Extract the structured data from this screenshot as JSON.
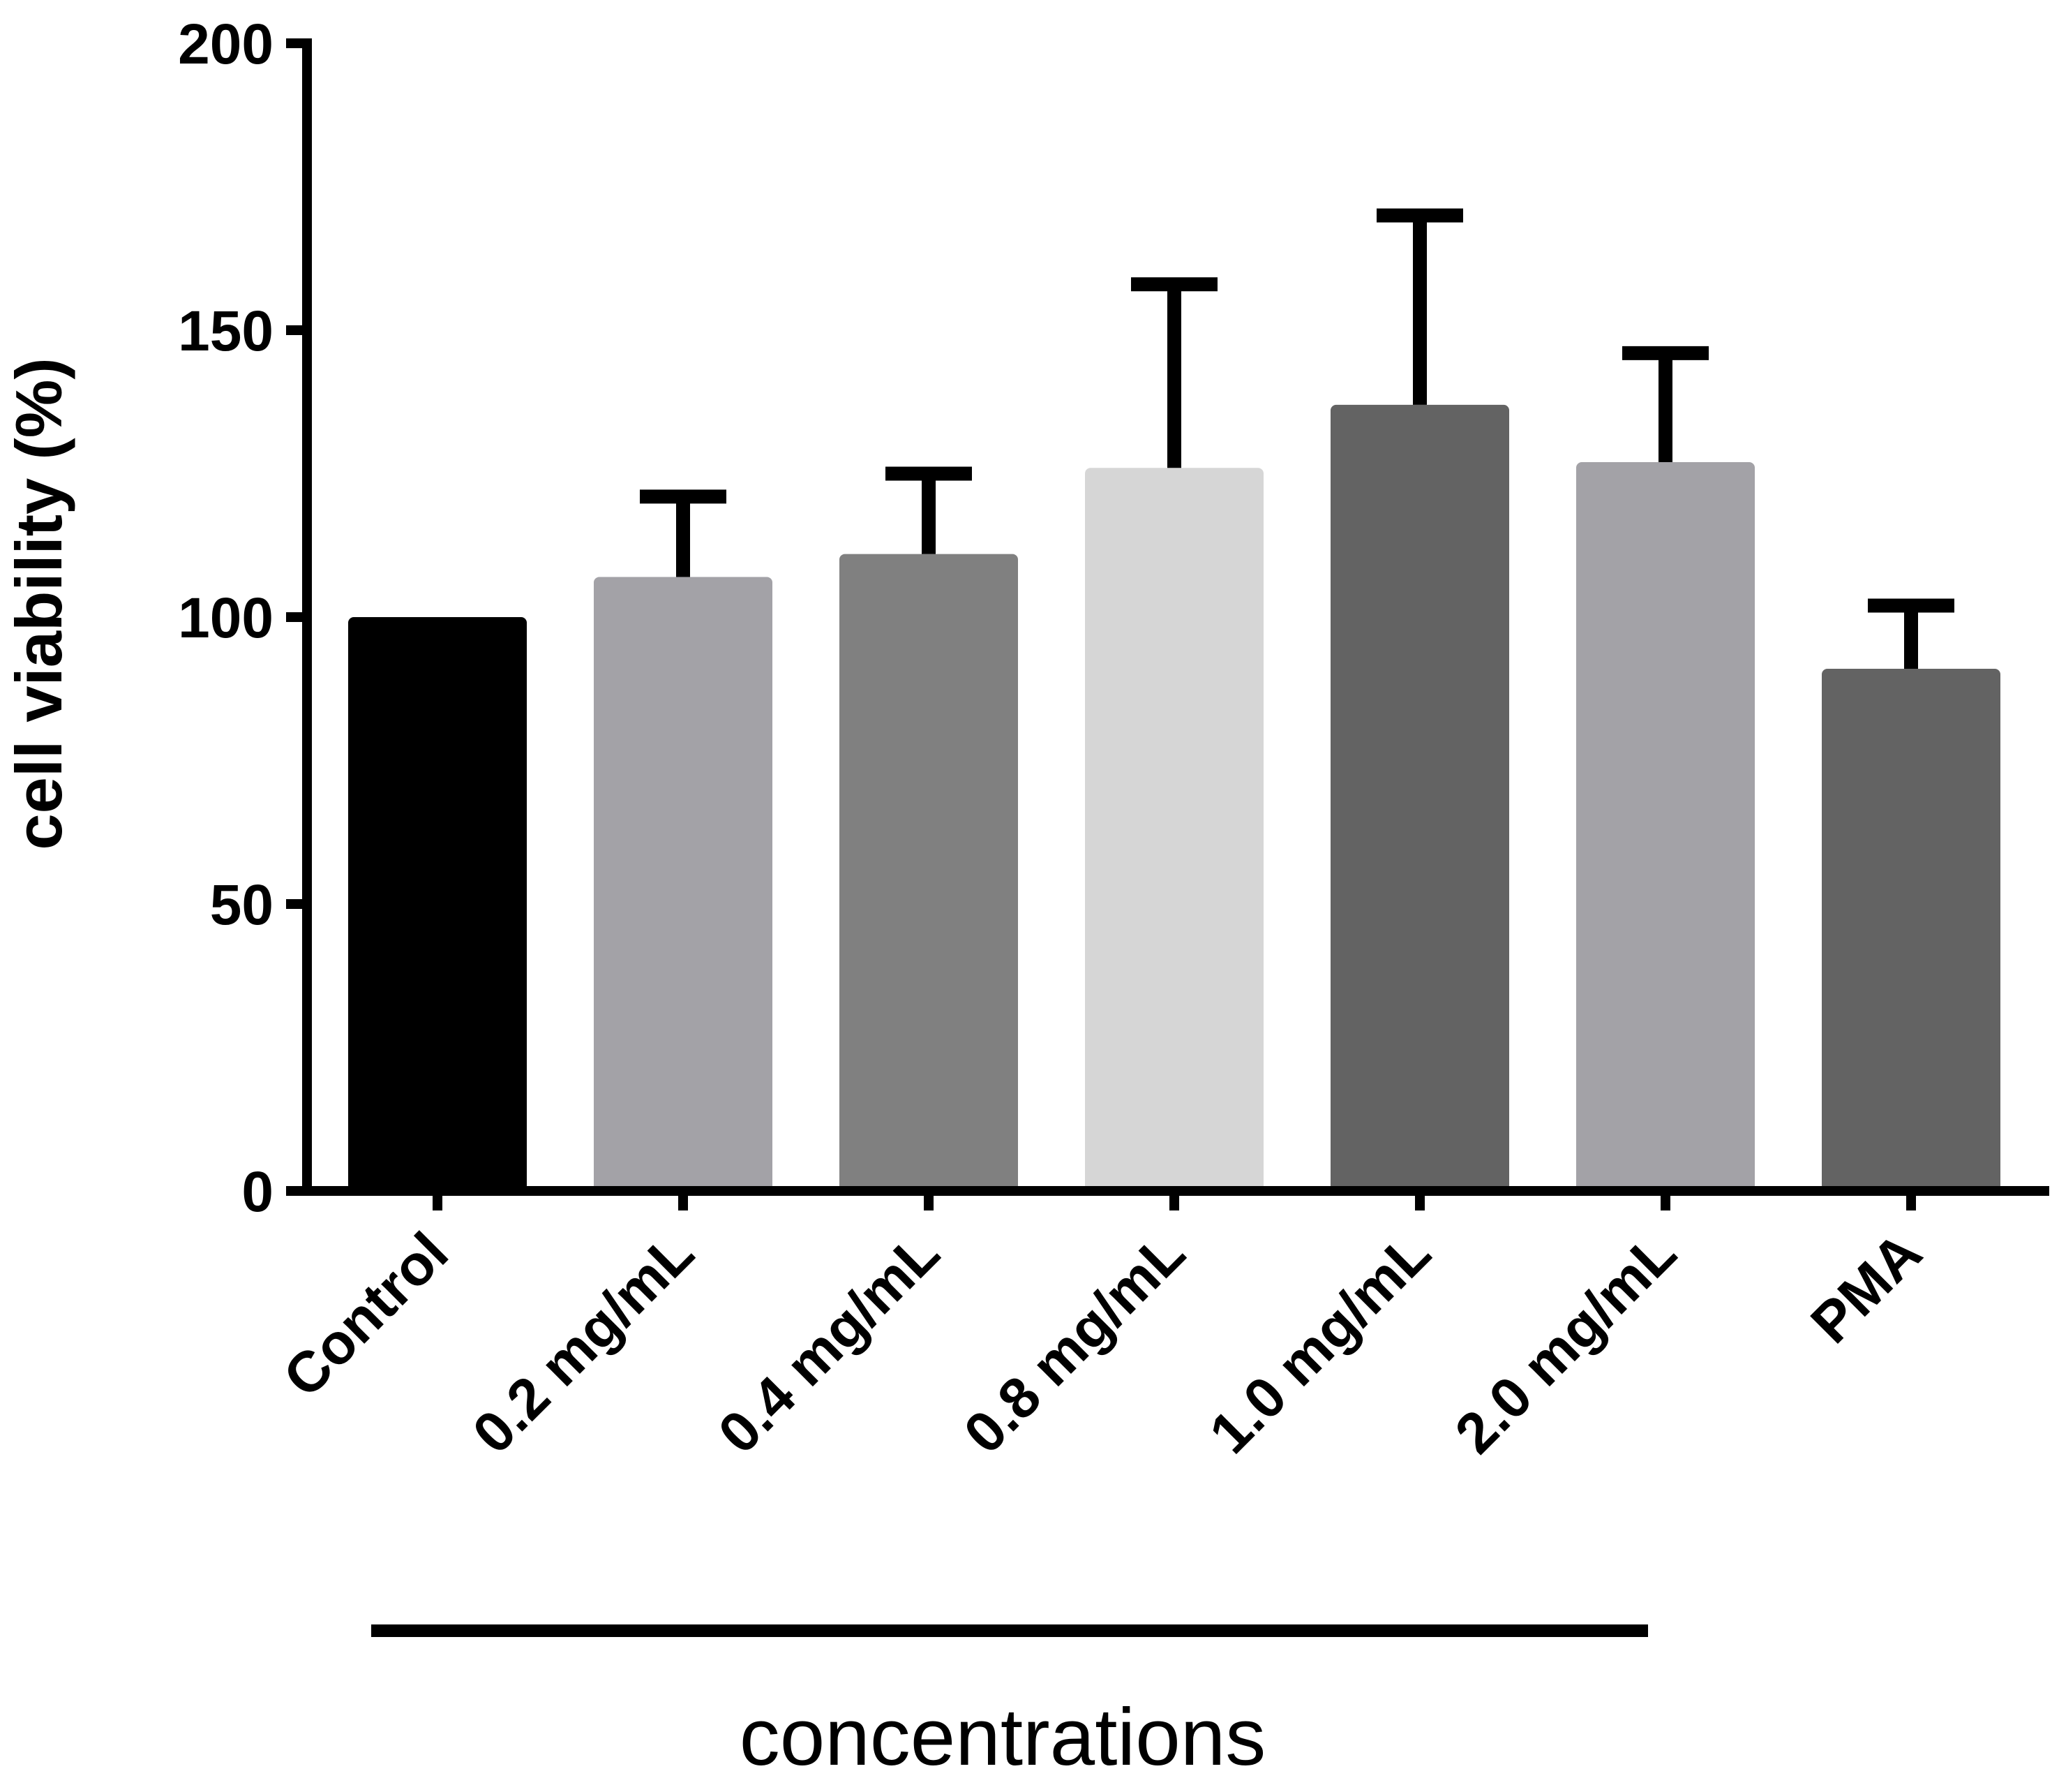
{
  "chart_data": {
    "type": "bar",
    "title": "",
    "xlabel": "",
    "ylabel": "cell viability (%)",
    "ylim": [
      0,
      200
    ],
    "yticks": [
      0,
      50,
      100,
      150,
      200
    ],
    "grid": false,
    "legend": "none",
    "categories": [
      "Control",
      "0.2 mg/mL",
      "0.4 mg/mL",
      "0.8 mg/mL",
      "1.0 mg/mL",
      "2.0 mg/mL",
      "PMA"
    ],
    "values": [
      100,
      107,
      111,
      126,
      137,
      127,
      91
    ],
    "errors": [
      0,
      14,
      14,
      32,
      33,
      19,
      11
    ],
    "colors": [
      "#000000",
      "#a3a2a7",
      "#808080",
      "#d6d6d6",
      "#636363",
      "#a3a2a7",
      "#636363"
    ],
    "group_bracket": {
      "label": "concentrations",
      "from_category": "Control",
      "to_category": "2.0 mg/mL"
    }
  }
}
